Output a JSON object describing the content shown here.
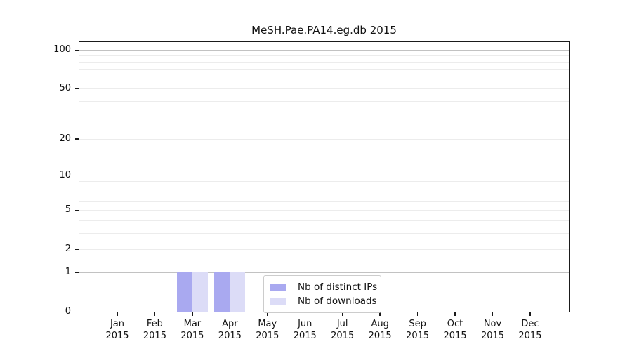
{
  "chart_data": {
    "type": "bar",
    "title": "MeSH.Pae.PA14.eg.db 2015",
    "categories": [
      "Jan",
      "Feb",
      "Mar",
      "Apr",
      "May",
      "Jun",
      "Jul",
      "Aug",
      "Sep",
      "Oct",
      "Nov",
      "Dec"
    ],
    "year_label": "2015",
    "series": [
      {
        "name": "Nb of distinct IPs",
        "color": "#a9a9f0",
        "values": [
          0,
          0,
          1,
          1,
          0,
          0,
          0,
          0,
          0,
          0,
          0,
          0
        ]
      },
      {
        "name": "Nb of downloads",
        "color": "#dcdcf7",
        "values": [
          0,
          0,
          1,
          1,
          0,
          0,
          0,
          0,
          0,
          0,
          0,
          0
        ]
      }
    ],
    "xlabel": "",
    "ylabel": "",
    "y_scale": "log1p",
    "ylim": [
      0,
      115
    ],
    "y_ticks": [
      0,
      1,
      2,
      5,
      10,
      20,
      50,
      100
    ],
    "y_major_gridlines": [
      1,
      10,
      100
    ],
    "y_minor_gridlines": [
      2,
      3,
      4,
      5,
      6,
      7,
      8,
      9,
      20,
      30,
      40,
      50,
      60,
      70,
      80,
      90
    ],
    "grid": true,
    "legend": {
      "position": "bottom-center",
      "entries": [
        "Nb of distinct IPs",
        "Nb of downloads"
      ]
    }
  }
}
